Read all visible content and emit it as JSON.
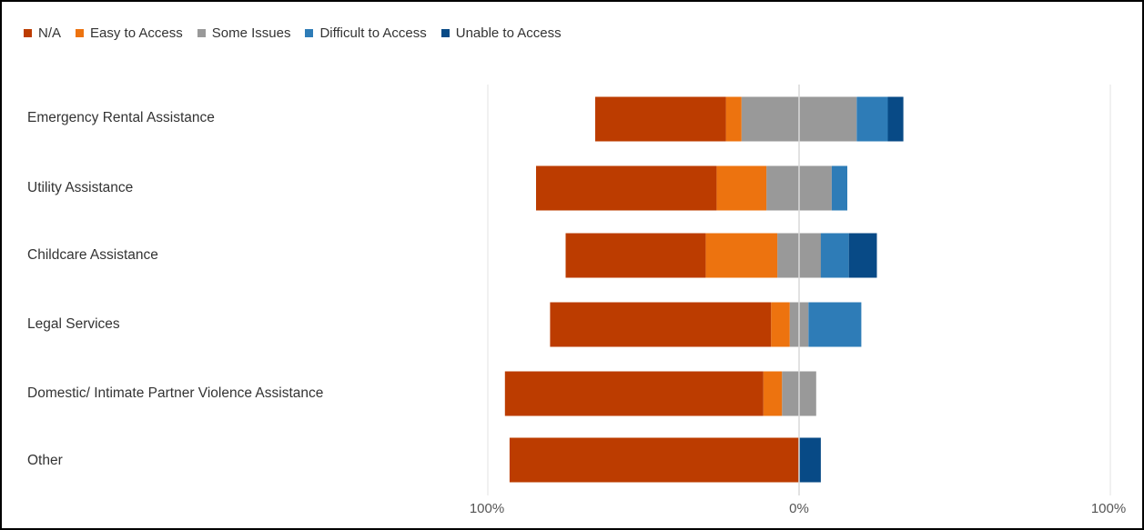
{
  "chart_data": {
    "type": "bar",
    "orientation": "horizontal",
    "stacked": "diverging",
    "title": "",
    "xlabel": "",
    "ylabel": "",
    "xlim": [
      -100,
      100
    ],
    "x_tick_labels": [
      "100%",
      "0%",
      "100%"
    ],
    "legend_position": "top-left",
    "categories": [
      "Emergency Rental Assistance",
      "Utility Assistance",
      "Childcare Assistance",
      "Legal Services",
      "Domestic/ Intimate Partner Violence Assistance",
      "Other"
    ],
    "series": [
      {
        "name": "N/A",
        "color": "#BC3C00",
        "side": "left",
        "values": [
          42,
          58,
          45,
          71,
          83,
          93
        ]
      },
      {
        "name": "Easy to Access",
        "color": "#ED730F",
        "side": "left",
        "values": [
          5,
          16,
          23,
          6,
          6,
          0
        ]
      },
      {
        "name": "Some Issues",
        "color": "#999999",
        "side": "center",
        "values": [
          37,
          21,
          14,
          6,
          11,
          0
        ]
      },
      {
        "name": "Difficult to Access",
        "color": "#2E7CB7",
        "side": "right",
        "values": [
          10,
          5,
          9,
          17,
          0,
          0
        ]
      },
      {
        "name": "Unable to Access",
        "color": "#084A86",
        "side": "right",
        "values": [
          5,
          0,
          9,
          0,
          0,
          7
        ]
      }
    ]
  }
}
